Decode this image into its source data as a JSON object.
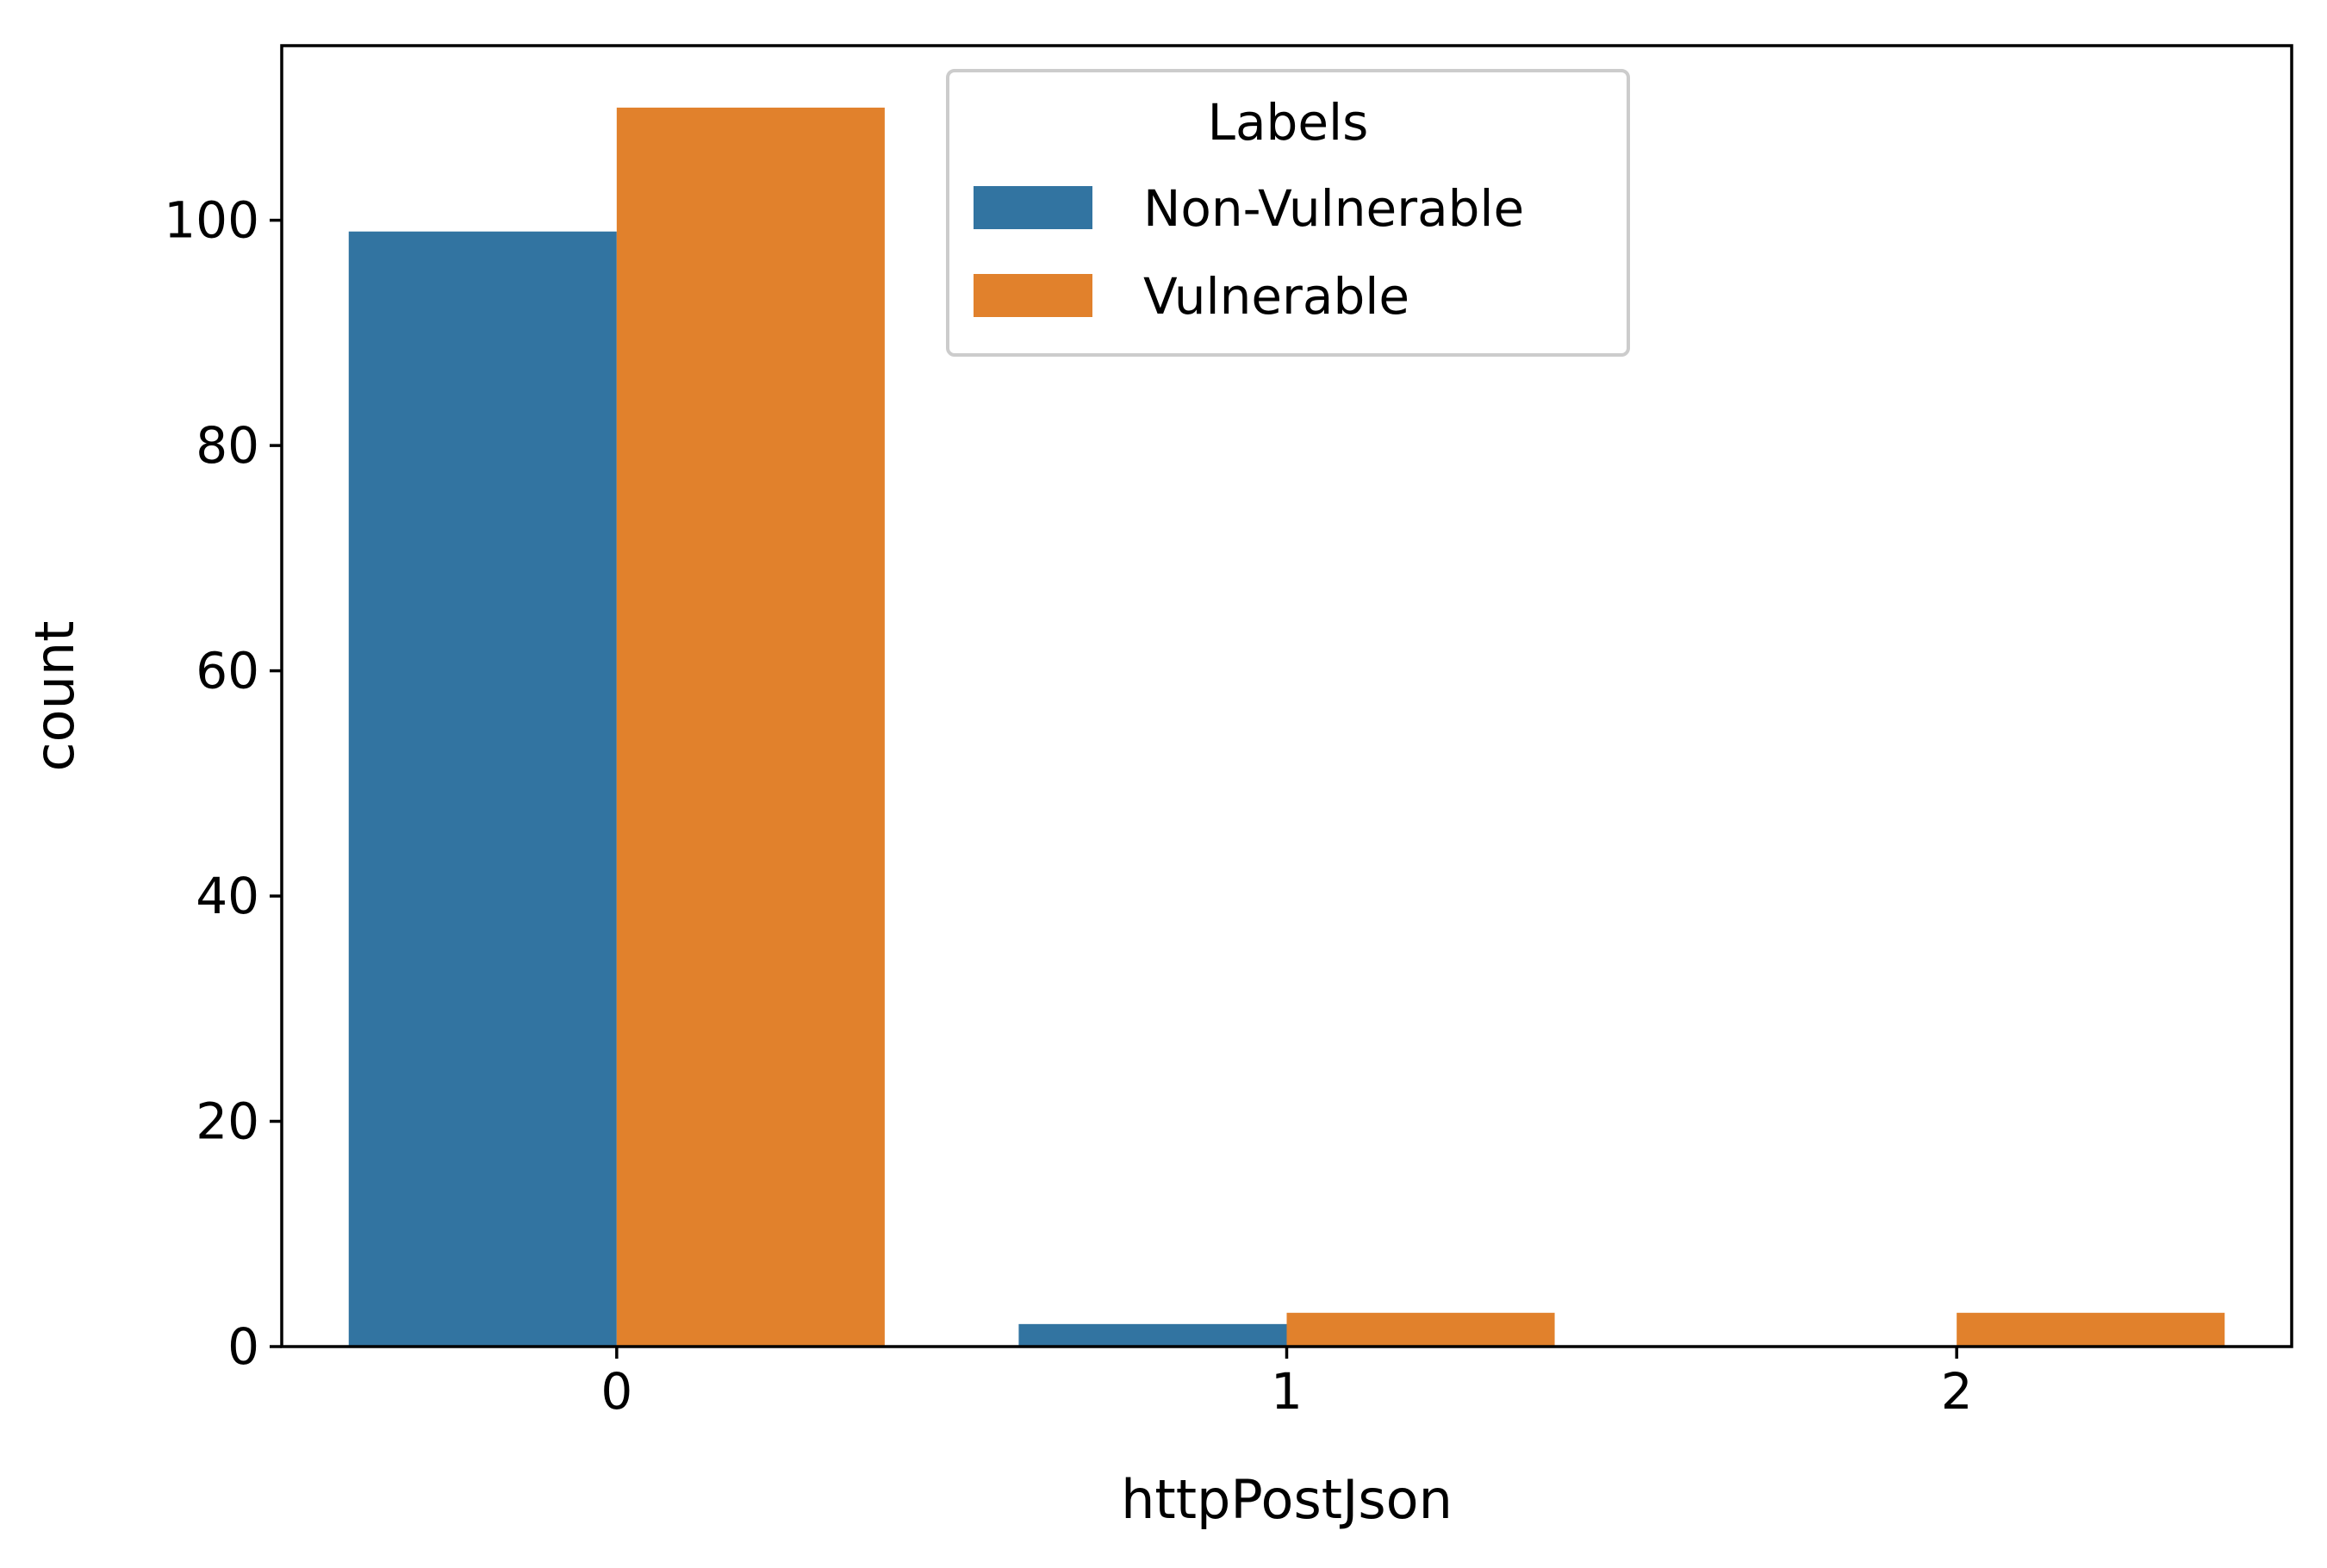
{
  "chart_data": {
    "type": "bar",
    "title": "",
    "xlabel": "httpPostJson",
    "ylabel": "count",
    "categories": [
      "0",
      "1",
      "2"
    ],
    "series": [
      {
        "name": "Non-Vulnerable",
        "color": "#3274a1",
        "values": [
          99,
          2,
          0
        ]
      },
      {
        "name": "Vulnerable",
        "color": "#e1812c",
        "values": [
          110,
          3,
          3
        ]
      }
    ],
    "ylim": [
      0,
      115.5
    ],
    "yticks": [
      0,
      20,
      40,
      60,
      80,
      100
    ],
    "grid": false,
    "legend": {
      "title": "Labels",
      "placement": "upper-center"
    }
  }
}
